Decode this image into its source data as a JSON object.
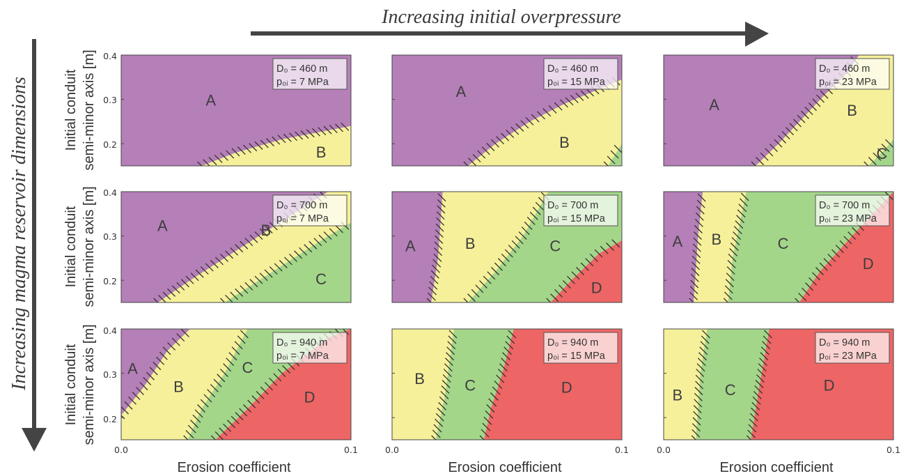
{
  "header": {
    "title": "Increasing initial overpressure",
    "side_title": "Increasing magma reservoir dimensions"
  },
  "axes": {
    "ylabel_line1": "Initial conduit",
    "ylabel_line2": "semi-minor axis [m]",
    "xlabel": "Erosion coefficient",
    "xticks": [
      "0.0",
      "0.1"
    ],
    "yticks": [
      "0.4",
      "0.3",
      "0.2"
    ]
  },
  "colors": {
    "A": "#b57fb8",
    "B": "#f6f09a",
    "C": "#a4d68a",
    "D": "#ee6565",
    "hatch": "#333333"
  },
  "chart_data": {
    "type": "area",
    "description_units": {
      "x": "Erosion coefficient",
      "y": "Initial conduit semi-minor axis [m]"
    },
    "xlim": [
      0.0,
      0.1
    ],
    "ylim": [
      0.15,
      0.4
    ],
    "panels": [
      {
        "row": 0,
        "col": 0,
        "legend_line1": "D₀ = 460 m",
        "legend_line2": "p₀ᵢ = 7 MPa",
        "boundaries": [
          {
            "from": "A",
            "to": "B",
            "points": [
              [
                0.035,
                0.15
              ],
              [
                0.05,
                0.18
              ],
              [
                0.07,
                0.21
              ],
              [
                0.1,
                0.24
              ]
            ]
          }
        ],
        "labels": [
          {
            "text": "A",
            "x": 0.039,
            "y": 0.295
          },
          {
            "text": "B",
            "x": 0.087,
            "y": 0.178
          }
        ]
      },
      {
        "row": 0,
        "col": 1,
        "legend_line1": "D₀ = 460 m",
        "legend_line2": "p₀ᵢ = 15 MPa",
        "boundaries": [
          {
            "from": "A",
            "to": "B",
            "points": [
              [
                0.033,
                0.15
              ],
              [
                0.045,
                0.2
              ],
              [
                0.06,
                0.25
              ],
              [
                0.075,
                0.29
              ],
              [
                0.093,
                0.33
              ],
              [
                0.1,
                0.345
              ]
            ]
          },
          {
            "from": "B",
            "to": "C",
            "points": [
              [
                0.094,
                0.15
              ],
              [
                0.1,
                0.2
              ]
            ]
          }
        ],
        "labels": [
          {
            "text": "A",
            "x": 0.03,
            "y": 0.315
          },
          {
            "text": "B",
            "x": 0.075,
            "y": 0.2
          }
        ]
      },
      {
        "row": 0,
        "col": 2,
        "legend_line1": "D₀ = 460 m",
        "legend_line2": "p₀ᵢ = 23 MPa",
        "boundaries": [
          {
            "from": "A",
            "to": "B",
            "points": [
              [
                0.04,
                0.15
              ],
              [
                0.05,
                0.2
              ],
              [
                0.06,
                0.255
              ],
              [
                0.07,
                0.31
              ],
              [
                0.08,
                0.36
              ],
              [
                0.085,
                0.4
              ]
            ]
          },
          {
            "from": "B",
            "to": "C",
            "points": [
              [
                0.089,
                0.15
              ],
              [
                0.095,
                0.18
              ],
              [
                0.1,
                0.21
              ]
            ]
          }
        ],
        "labels": [
          {
            "text": "A",
            "x": 0.022,
            "y": 0.285
          },
          {
            "text": "B",
            "x": 0.082,
            "y": 0.272
          },
          {
            "text": "C",
            "x": 0.095,
            "y": 0.175
          }
        ]
      },
      {
        "row": 1,
        "col": 0,
        "legend_line1": "D₀ = 700 m",
        "legend_line2": "p₀ᵢ = 7 MPa",
        "boundaries": [
          {
            "from": "A",
            "to": "B",
            "points": [
              [
                0.016,
                0.15
              ],
              [
                0.03,
                0.2
              ],
              [
                0.045,
                0.25
              ],
              [
                0.06,
                0.3
              ],
              [
                0.075,
                0.35
              ],
              [
                0.09,
                0.4
              ]
            ]
          },
          {
            "from": "B",
            "to": "C",
            "points": [
              [
                0.045,
                0.15
              ],
              [
                0.06,
                0.2
              ],
              [
                0.075,
                0.25
              ],
              [
                0.09,
                0.3
              ],
              [
                0.1,
                0.33
              ]
            ]
          }
        ],
        "labels": [
          {
            "text": "A",
            "x": 0.018,
            "y": 0.32
          },
          {
            "text": "B",
            "x": 0.063,
            "y": 0.31
          },
          {
            "text": "C",
            "x": 0.087,
            "y": 0.2
          }
        ]
      },
      {
        "row": 1,
        "col": 1,
        "legend_line1": "D₀ = 700 m",
        "legend_line2": "p₀ᵢ = 15 MPa",
        "boundaries": [
          {
            "from": "A",
            "to": "B",
            "points": [
              [
                0.017,
                0.15
              ],
              [
                0.02,
                0.25
              ],
              [
                0.022,
                0.4
              ]
            ]
          },
          {
            "from": "B",
            "to": "C",
            "points": [
              [
                0.033,
                0.15
              ],
              [
                0.045,
                0.22
              ],
              [
                0.057,
                0.3
              ],
              [
                0.068,
                0.4
              ]
            ]
          },
          {
            "from": "C",
            "to": "D",
            "points": [
              [
                0.069,
                0.15
              ],
              [
                0.078,
                0.2
              ],
              [
                0.09,
                0.26
              ],
              [
                0.1,
                0.29
              ]
            ]
          }
        ],
        "labels": [
          {
            "text": "A",
            "x": 0.008,
            "y": 0.275
          },
          {
            "text": "B",
            "x": 0.034,
            "y": 0.28
          },
          {
            "text": "C",
            "x": 0.071,
            "y": 0.275
          },
          {
            "text": "D",
            "x": 0.089,
            "y": 0.18
          }
        ]
      },
      {
        "row": 1,
        "col": 2,
        "legend_line1": "D₀ = 700 m",
        "legend_line2": "p₀ᵢ = 23 MPa",
        "boundaries": [
          {
            "from": "A",
            "to": "B",
            "points": [
              [
                0.013,
                0.15
              ],
              [
                0.015,
                0.3
              ],
              [
                0.017,
                0.4
              ]
            ]
          },
          {
            "from": "B",
            "to": "C",
            "points": [
              [
                0.028,
                0.15
              ],
              [
                0.03,
                0.25
              ],
              [
                0.036,
                0.4
              ]
            ]
          },
          {
            "from": "C",
            "to": "D",
            "points": [
              [
                0.059,
                0.15
              ],
              [
                0.068,
                0.22
              ],
              [
                0.082,
                0.3
              ],
              [
                0.1,
                0.4
              ]
            ]
          }
        ],
        "labels": [
          {
            "text": "A",
            "x": 0.006,
            "y": 0.285
          },
          {
            "text": "B",
            "x": 0.023,
            "y": 0.29
          },
          {
            "text": "C",
            "x": 0.052,
            "y": 0.28
          },
          {
            "text": "D",
            "x": 0.089,
            "y": 0.235
          }
        ]
      },
      {
        "row": 2,
        "col": 0,
        "legend_line1": "D₀ = 940 m",
        "legend_line2": "p₀ᵢ = 7 MPa",
        "boundaries": [
          {
            "from": "A",
            "to": "B",
            "points": [
              [
                0.0,
                0.205
              ],
              [
                0.01,
                0.27
              ],
              [
                0.02,
                0.35
              ],
              [
                0.03,
                0.4
              ]
            ]
          },
          {
            "from": "B",
            "to": "C",
            "points": [
              [
                0.029,
                0.15
              ],
              [
                0.035,
                0.22
              ],
              [
                0.045,
                0.3
              ],
              [
                0.055,
                0.4
              ]
            ]
          },
          {
            "from": "C",
            "to": "D",
            "points": [
              [
                0.041,
                0.15
              ],
              [
                0.055,
                0.22
              ],
              [
                0.07,
                0.3
              ],
              [
                0.09,
                0.38
              ],
              [
                0.1,
                0.4
              ]
            ]
          }
        ],
        "labels": [
          {
            "text": "A",
            "x": 0.005,
            "y": 0.308
          },
          {
            "text": "B",
            "x": 0.025,
            "y": 0.267
          },
          {
            "text": "C",
            "x": 0.055,
            "y": 0.31
          },
          {
            "text": "D",
            "x": 0.082,
            "y": 0.243
          }
        ]
      },
      {
        "row": 2,
        "col": 1,
        "legend_line1": "D₀ = 940 m",
        "legend_line2": "p₀ᵢ = 15 MPa",
        "boundaries": [
          {
            "from": "B",
            "to": "C",
            "points": [
              [
                0.019,
                0.15
              ],
              [
                0.023,
                0.25
              ],
              [
                0.027,
                0.4
              ]
            ]
          },
          {
            "from": "C",
            "to": "D",
            "points": [
              [
                0.04,
                0.15
              ],
              [
                0.043,
                0.22
              ],
              [
                0.048,
                0.3
              ],
              [
                0.053,
                0.4
              ]
            ]
          }
        ],
        "labels": [
          {
            "text": "B",
            "x": 0.012,
            "y": 0.285
          },
          {
            "text": "C",
            "x": 0.034,
            "y": 0.27
          },
          {
            "text": "D",
            "x": 0.076,
            "y": 0.265
          }
        ]
      },
      {
        "row": 2,
        "col": 2,
        "legend_line1": "D₀ = 940 m",
        "legend_line2": "p₀ᵢ = 23 MPa",
        "boundaries": [
          {
            "from": "B",
            "to": "C",
            "points": [
              [
                0.014,
                0.15
              ],
              [
                0.016,
                0.3
              ],
              [
                0.019,
                0.4
              ]
            ]
          },
          {
            "from": "C",
            "to": "D",
            "points": [
              [
                0.038,
                0.15
              ],
              [
                0.041,
                0.25
              ],
              [
                0.046,
                0.4
              ]
            ]
          }
        ],
        "labels": [
          {
            "text": "B",
            "x": 0.006,
            "y": 0.248
          },
          {
            "text": "C",
            "x": 0.029,
            "y": 0.26
          },
          {
            "text": "D",
            "x": 0.072,
            "y": 0.27
          }
        ]
      }
    ]
  }
}
